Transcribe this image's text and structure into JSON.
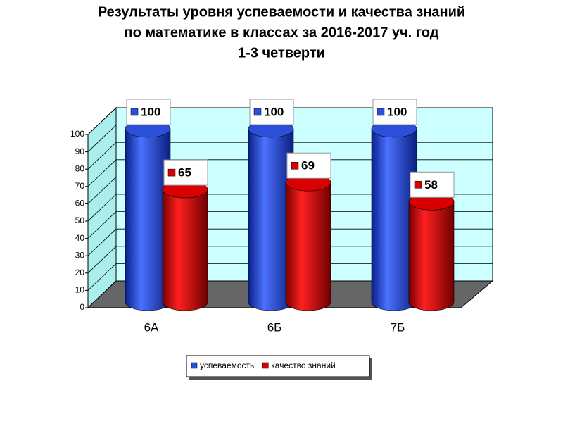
{
  "chart_data": {
    "type": "bar3d",
    "title": [
      "Результаты уровня успеваемости и качества знаний",
      "по математике в  классах за 2016-2017 уч. год",
      "1-3 четверти"
    ],
    "categories": [
      "6А",
      "6Б",
      "7Б"
    ],
    "series": [
      {
        "name": "успеваемость",
        "color": "#2b4fd8",
        "values": [
          100,
          100,
          100
        ]
      },
      {
        "name": "качество знаний",
        "color": "#d80000",
        "values": [
          65,
          69,
          58
        ]
      }
    ],
    "ylim": [
      0,
      100
    ],
    "yticks": [
      0,
      10,
      20,
      30,
      40,
      50,
      60,
      70,
      80,
      90,
      100
    ],
    "grid": true,
    "legend": "bottom"
  }
}
